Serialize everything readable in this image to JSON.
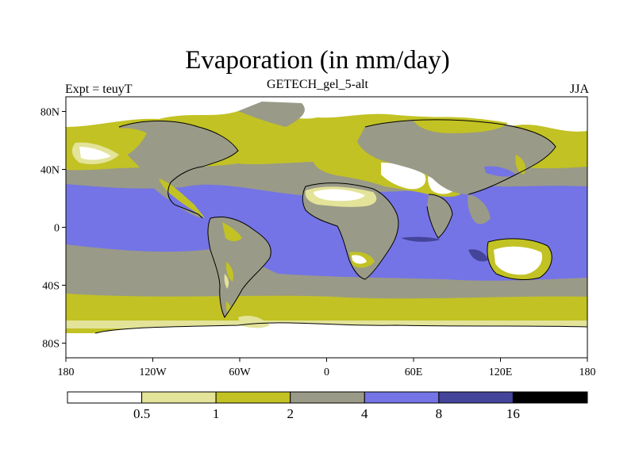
{
  "title": "Evaporation (in mm/day)",
  "subtitle": "GETECH_gel_5-alt",
  "left_label": "Expt = teuyT",
  "right_label": "JJA",
  "map": {
    "lat_ticks": [
      {
        "value": 80,
        "label": "80N"
      },
      {
        "value": 40,
        "label": "40N"
      },
      {
        "value": 0,
        "label": "0"
      },
      {
        "value": -40,
        "label": "40S"
      },
      {
        "value": -80,
        "label": "80S"
      }
    ],
    "lon_ticks": [
      {
        "value": -180,
        "label": "180"
      },
      {
        "value": -120,
        "label": "120W"
      },
      {
        "value": -60,
        "label": "60W"
      },
      {
        "value": 0,
        "label": "0"
      },
      {
        "value": 60,
        "label": "60E"
      },
      {
        "value": 120,
        "label": "120E"
      },
      {
        "value": 180,
        "label": "180"
      }
    ]
  },
  "colorbar": {
    "colors": [
      "#ffffff",
      "#e3e39a",
      "#c2c224",
      "#9a9a88",
      "#7474e6",
      "#44449a",
      "#000000"
    ],
    "levels": [
      "0.5",
      "1",
      "2",
      "4",
      "8",
      "16"
    ]
  },
  "colors": {
    "white": "#ffffff",
    "pale": "#e3e39a",
    "olive": "#c2c224",
    "gray": "#9a9a88",
    "blue": "#7474e6",
    "darkblue": "#44449a",
    "black": "#000000"
  }
}
